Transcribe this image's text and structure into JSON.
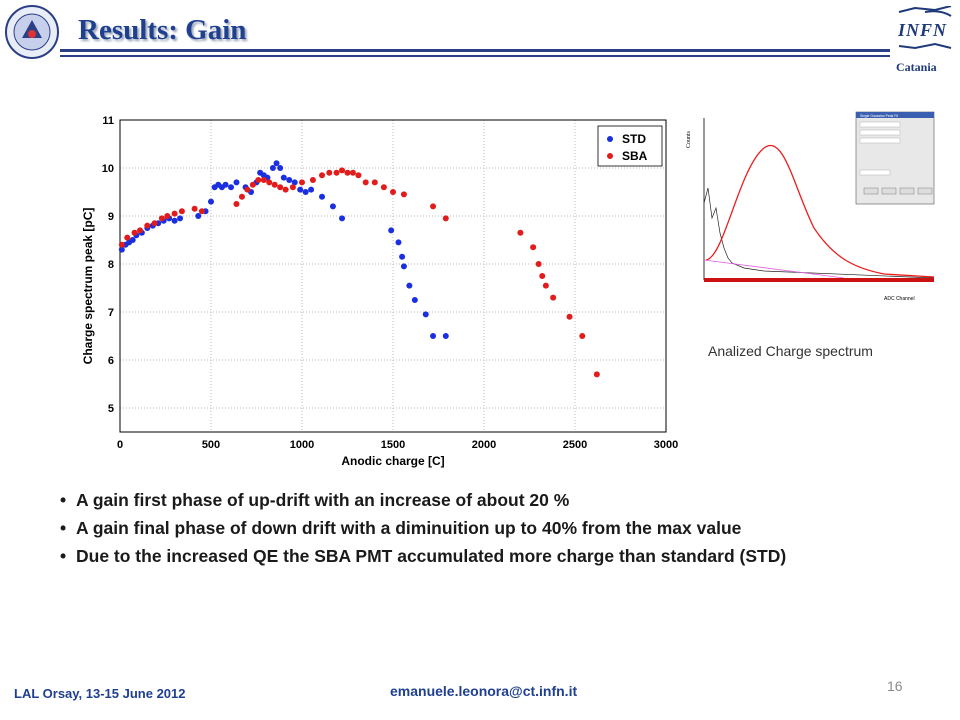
{
  "slide": {
    "title": "Results: Gain",
    "institution": "Catania",
    "logo_text": "INFN"
  },
  "inset": {
    "caption": "Analized Charge spectrum",
    "ylabel": "Counts",
    "xlabel": "ADC Channel",
    "dialog_title": "Single Gaussian Peak Fit"
  },
  "bullets": [
    "A gain first phase of up-drift with an increase of about 20 %",
    "A gain final phase of down drift with a diminuition up to 40% from the max value",
    "Due to the increased QE the SBA PMT accumulated more charge than standard (STD)"
  ],
  "footer": {
    "event": "LAL Orsay, 13-15 June 2012",
    "email": "emanuele.leonora@ct.infn.it",
    "page": "16"
  },
  "colors": {
    "title": "#1f3f8f",
    "std": "#1a2fe0",
    "sba": "#e21b1b"
  },
  "chart_data": {
    "type": "scatter",
    "title": "",
    "xlabel": "Anodic charge  [C]",
    "ylabel": "Charge spectrum peak [pC]",
    "xlim": [
      0,
      3000
    ],
    "ylim": [
      4.5,
      11
    ],
    "xticks": [
      0,
      500,
      1000,
      1500,
      2000,
      2500,
      3000
    ],
    "yticks": [
      5,
      6,
      7,
      8,
      9,
      10,
      11
    ],
    "grid": true,
    "legend_position": "top-right",
    "series": [
      {
        "name": "STD",
        "color": "#1a2fe0",
        "points": [
          [
            10,
            8.3
          ],
          [
            30,
            8.4
          ],
          [
            50,
            8.45
          ],
          [
            70,
            8.5
          ],
          [
            90,
            8.6
          ],
          [
            120,
            8.65
          ],
          [
            150,
            8.75
          ],
          [
            180,
            8.8
          ],
          [
            210,
            8.85
          ],
          [
            240,
            8.9
          ],
          [
            270,
            8.95
          ],
          [
            300,
            8.9
          ],
          [
            330,
            8.95
          ],
          [
            430,
            9.0
          ],
          [
            470,
            9.1
          ],
          [
            500,
            9.3
          ],
          [
            520,
            9.6
          ],
          [
            540,
            9.65
          ],
          [
            560,
            9.6
          ],
          [
            580,
            9.65
          ],
          [
            610,
            9.6
          ],
          [
            640,
            9.7
          ],
          [
            690,
            9.6
          ],
          [
            720,
            9.5
          ],
          [
            750,
            9.7
          ],
          [
            770,
            9.9
          ],
          [
            790,
            9.85
          ],
          [
            810,
            9.8
          ],
          [
            840,
            10.0
          ],
          [
            860,
            10.1
          ],
          [
            880,
            10.0
          ],
          [
            900,
            9.8
          ],
          [
            930,
            9.75
          ],
          [
            960,
            9.7
          ],
          [
            990,
            9.55
          ],
          [
            1020,
            9.5
          ],
          [
            1050,
            9.55
          ],
          [
            1110,
            9.4
          ],
          [
            1170,
            9.2
          ],
          [
            1220,
            8.95
          ],
          [
            1490,
            8.7
          ],
          [
            1530,
            8.45
          ],
          [
            1550,
            8.15
          ],
          [
            1560,
            7.95
          ],
          [
            1590,
            7.55
          ],
          [
            1620,
            7.25
          ],
          [
            1680,
            6.95
          ],
          [
            1720,
            6.5
          ],
          [
            1790,
            6.5
          ]
        ]
      },
      {
        "name": "SBA",
        "color": "#e21b1b",
        "points": [
          [
            10,
            8.4
          ],
          [
            40,
            8.55
          ],
          [
            80,
            8.65
          ],
          [
            110,
            8.7
          ],
          [
            150,
            8.8
          ],
          [
            190,
            8.85
          ],
          [
            230,
            8.95
          ],
          [
            260,
            9.0
          ],
          [
            300,
            9.05
          ],
          [
            340,
            9.1
          ],
          [
            410,
            9.15
          ],
          [
            450,
            9.1
          ],
          [
            640,
            9.25
          ],
          [
            670,
            9.4
          ],
          [
            700,
            9.55
          ],
          [
            730,
            9.65
          ],
          [
            760,
            9.75
          ],
          [
            790,
            9.75
          ],
          [
            820,
            9.7
          ],
          [
            850,
            9.65
          ],
          [
            880,
            9.6
          ],
          [
            910,
            9.55
          ],
          [
            950,
            9.6
          ],
          [
            1000,
            9.7
          ],
          [
            1060,
            9.75
          ],
          [
            1110,
            9.85
          ],
          [
            1150,
            9.9
          ],
          [
            1190,
            9.9
          ],
          [
            1220,
            9.95
          ],
          [
            1250,
            9.9
          ],
          [
            1280,
            9.9
          ],
          [
            1310,
            9.85
          ],
          [
            1350,
            9.7
          ],
          [
            1400,
            9.7
          ],
          [
            1450,
            9.6
          ],
          [
            1500,
            9.5
          ],
          [
            1560,
            9.45
          ],
          [
            1720,
            9.2
          ],
          [
            1790,
            8.95
          ],
          [
            2200,
            8.65
          ],
          [
            2270,
            8.35
          ],
          [
            2300,
            8.0
          ],
          [
            2320,
            7.75
          ],
          [
            2340,
            7.55
          ],
          [
            2380,
            7.3
          ],
          [
            2470,
            6.9
          ],
          [
            2540,
            6.5
          ],
          [
            2620,
            5.7
          ]
        ]
      }
    ]
  }
}
